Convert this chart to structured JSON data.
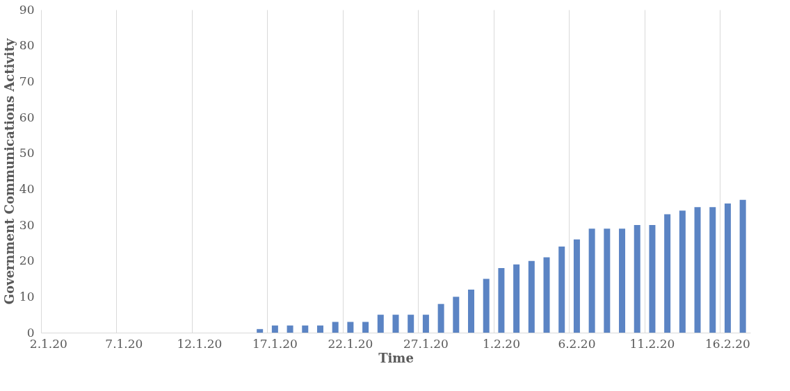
{
  "chart_data": {
    "type": "bar",
    "xlabel": "Time",
    "ylabel": "Government Communications Activity",
    "categories": [
      "2.1.20",
      null,
      null,
      null,
      null,
      "7.1.20",
      null,
      null,
      null,
      null,
      "12.1.20",
      null,
      null,
      null,
      null,
      "17.1.20",
      null,
      null,
      null,
      null,
      "22.1.20",
      null,
      null,
      null,
      null,
      "27.1.20",
      null,
      null,
      null,
      null,
      "1.2.20",
      null,
      null,
      null,
      null,
      "6.2.20",
      null,
      null,
      null,
      null,
      "11.2.20",
      null,
      null,
      null,
      null,
      "16.2.20",
      null
    ],
    "values": [
      null,
      null,
      null,
      null,
      null,
      null,
      null,
      null,
      null,
      null,
      null,
      null,
      null,
      null,
      1,
      2,
      2,
      2,
      2,
      3,
      3,
      3,
      5,
      5,
      5,
      5,
      8,
      10,
      12,
      15,
      18,
      19,
      20,
      21,
      24,
      26,
      29,
      29,
      29,
      30,
      30,
      33,
      34,
      35,
      35,
      36,
      37
    ],
    "color": "#5b84c4",
    "ylim": [
      0,
      90
    ],
    "yticks": [
      0,
      10,
      20,
      30,
      40,
      50,
      60,
      70,
      80,
      90
    ],
    "grid": "x"
  }
}
